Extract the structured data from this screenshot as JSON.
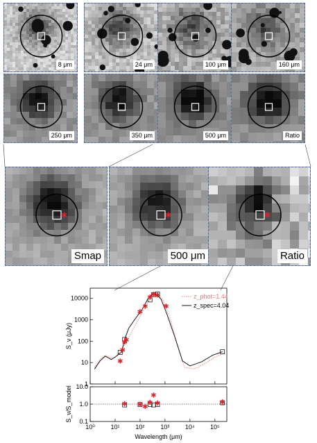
{
  "top_panels": [
    {
      "label": "8 μm",
      "row": 0,
      "col": 0,
      "seed": 11,
      "bg": 205,
      "contrast": 55,
      "pixel": 4,
      "dark": 0.7
    },
    {
      "label": "24 μm",
      "row": 0,
      "col": 1,
      "seed": 23,
      "bg": 195,
      "contrast": 60,
      "pixel": 5,
      "dark": 0.8
    },
    {
      "label": "100 μm",
      "row": 0,
      "col": 2,
      "seed": 37,
      "bg": 175,
      "contrast": 65,
      "pixel": 6,
      "dark": 0.6
    },
    {
      "label": "160 μm",
      "row": 0,
      "col": 3,
      "seed": 41,
      "bg": 170,
      "contrast": 55,
      "pixel": 7,
      "dark": 0.6
    },
    {
      "label": "250 μm",
      "row": 1,
      "col": 0,
      "seed": 53,
      "bg": 150,
      "contrast": 40,
      "pixel": 9,
      "dark": 0.9
    },
    {
      "label": "350 μm",
      "row": 1,
      "col": 1,
      "seed": 61,
      "bg": 150,
      "contrast": 40,
      "pixel": 10,
      "dark": 0.9
    },
    {
      "label": "500 μm",
      "row": 1,
      "col": 2,
      "seed": 71,
      "bg": 145,
      "contrast": 40,
      "pixel": 11,
      "dark": 1.0
    },
    {
      "label": "Ratio",
      "row": 1,
      "col": 3,
      "seed": 83,
      "bg": 145,
      "contrast": 45,
      "pixel": 12,
      "dark": 1.0
    }
  ],
  "big_panels": [
    {
      "label": "Smap",
      "seed": 97,
      "bg": 170,
      "contrast": 35,
      "pixel": 10,
      "dark": 1.0
    },
    {
      "label": "500 μm",
      "seed": 103,
      "bg": 170,
      "contrast": 35,
      "pixel": 11,
      "dark": 0.9
    },
    {
      "label": "Ratio",
      "seed": 109,
      "bg": 170,
      "contrast": 70,
      "pixel": 13,
      "dark": 1.0
    }
  ],
  "chart_data": {
    "type": "scatter",
    "x_scale": "log",
    "y_scale": "log",
    "xlabel": "Wavelength (μm)",
    "xlim": [
      1,
      300000
    ],
    "top": {
      "ylabel": "S_ν (μJy)",
      "ylim": [
        1,
        30000
      ],
      "yticks": [
        "1",
        "10",
        "100",
        "1000",
        "10000"
      ],
      "legend": [
        {
          "name": "z_phot=1.44",
          "color": "#e8787a",
          "style": "dotted"
        },
        {
          "name": "z_spec=4.04",
          "color": "#000000",
          "style": "solid"
        }
      ],
      "photometry_points": [
        [
          16,
          12
        ],
        [
          20,
          40
        ],
        [
          24,
          95
        ],
        [
          28,
          120
        ],
        [
          100,
          2500
        ],
        [
          160,
          4500
        ],
        [
          250,
          12000
        ],
        [
          350,
          16000
        ],
        [
          500,
          15000
        ],
        [
          1100,
          4500
        ]
      ],
      "model_boxes": [
        [
          16,
          30
        ],
        [
          24,
          120
        ],
        [
          250,
          8500
        ],
        [
          350,
          15000
        ],
        [
          500,
          16000
        ],
        [
          200000,
          32
        ]
      ],
      "model_spec": [
        [
          1.5,
          5
        ],
        [
          2.5,
          12
        ],
        [
          4,
          20
        ],
        [
          7,
          14
        ],
        [
          10,
          18
        ],
        [
          14,
          25
        ],
        [
          18,
          30
        ],
        [
          24,
          120
        ],
        [
          35,
          400
        ],
        [
          60,
          1000
        ],
        [
          120,
          3000
        ],
        [
          200,
          9000
        ],
        [
          300,
          15000
        ],
        [
          450,
          16000
        ],
        [
          700,
          9000
        ],
        [
          1200,
          1800
        ],
        [
          2500,
          150
        ],
        [
          5000,
          12
        ],
        [
          10000,
          7
        ],
        [
          30000,
          11
        ],
        [
          80000,
          22
        ],
        [
          200000,
          32
        ]
      ],
      "model_phot": [
        [
          1.5,
          6
        ],
        [
          2.5,
          14
        ],
        [
          4,
          22
        ],
        [
          8,
          16
        ],
        [
          12,
          20
        ],
        [
          20,
          45
        ],
        [
          40,
          200
        ],
        [
          80,
          900
        ],
        [
          160,
          4000
        ],
        [
          300,
          12000
        ],
        [
          500,
          16000
        ],
        [
          800,
          9000
        ],
        [
          1500,
          1500
        ],
        [
          3000,
          80
        ],
        [
          6000,
          6
        ],
        [
          15000,
          5
        ],
        [
          40000,
          9
        ],
        [
          100000,
          18
        ],
        [
          250000,
          28
        ]
      ]
    },
    "bottom": {
      "ylabel": "S_ν/S_model",
      "ylim": [
        0.1,
        10
      ],
      "yticks": [
        "0.1",
        "1.0",
        "10.0"
      ],
      "reference_line": 1,
      "points": [
        [
          24,
          1.1
        ],
        [
          100,
          1.0
        ],
        [
          160,
          0.75
        ],
        [
          250,
          1.3
        ],
        [
          350,
          3.5
        ],
        [
          500,
          1.2
        ],
        [
          200000,
          1.4
        ]
      ],
      "boxes": [
        [
          24,
          0.9
        ],
        [
          100,
          0.95
        ],
        [
          250,
          0.95
        ],
        [
          350,
          0.9
        ],
        [
          500,
          0.95
        ],
        [
          200000,
          1.2
        ]
      ]
    },
    "xticks": [
      "10⁰",
      "10¹",
      "10²",
      "10³",
      "10⁴",
      "10⁵"
    ]
  }
}
